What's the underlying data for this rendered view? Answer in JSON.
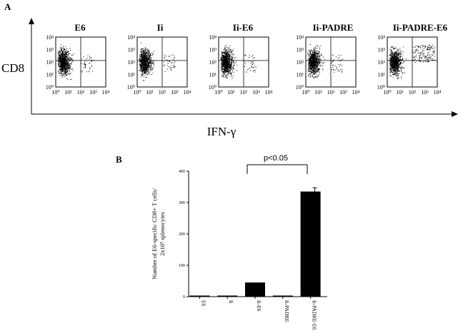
{
  "panel_a": {
    "letter": "A",
    "columns": [
      "E6",
      "Ii",
      "Ii-E6",
      "Ii-PADRE",
      "Ii-PADRE-E6"
    ],
    "y_axis_label": "CD8",
    "x_axis_label": "IFN-γ",
    "tick_labels": [
      "10⁰",
      "10¹",
      "10²",
      "10³",
      "10⁴"
    ]
  },
  "panel_b": {
    "letter": "B",
    "significance": "p<0.05",
    "ylabel_line1": "Number of E6-specific CD8+ T cells/",
    "ylabel_line2": "2x10⁵ splenocytes"
  },
  "chart_data": [
    {
      "type": "scatter",
      "description_layout": "five flow-cytometry dot plots, log-scale quadrant plots",
      "x_scale": "log",
      "y_scale": "log",
      "xlim": [
        1,
        10000
      ],
      "ylim": [
        1,
        10000
      ],
      "xlabel": "IFN-γ",
      "ylabel": "CD8",
      "titles": [
        "E6",
        "Ii",
        "Ii-E6",
        "Ii-PADRE",
        "Ii-PADRE-E6"
      ]
    },
    {
      "type": "bar",
      "categories": [
        "E6",
        "Ii",
        "Ii-E6",
        "Ii-PADRE",
        "Ii-PADRE-E6"
      ],
      "values": [
        3,
        3,
        45,
        1,
        335
      ],
      "errors": [
        0,
        0,
        0,
        0,
        12
      ],
      "ylim": [
        0,
        400
      ],
      "yticks": [
        0,
        100,
        200,
        300,
        400
      ],
      "ylabel": "Number of E6-specific CD8+ T cells/ 2x10⁵ splenocytes",
      "xlabel": "",
      "bar_color": "#000000",
      "grid": false
    }
  ]
}
